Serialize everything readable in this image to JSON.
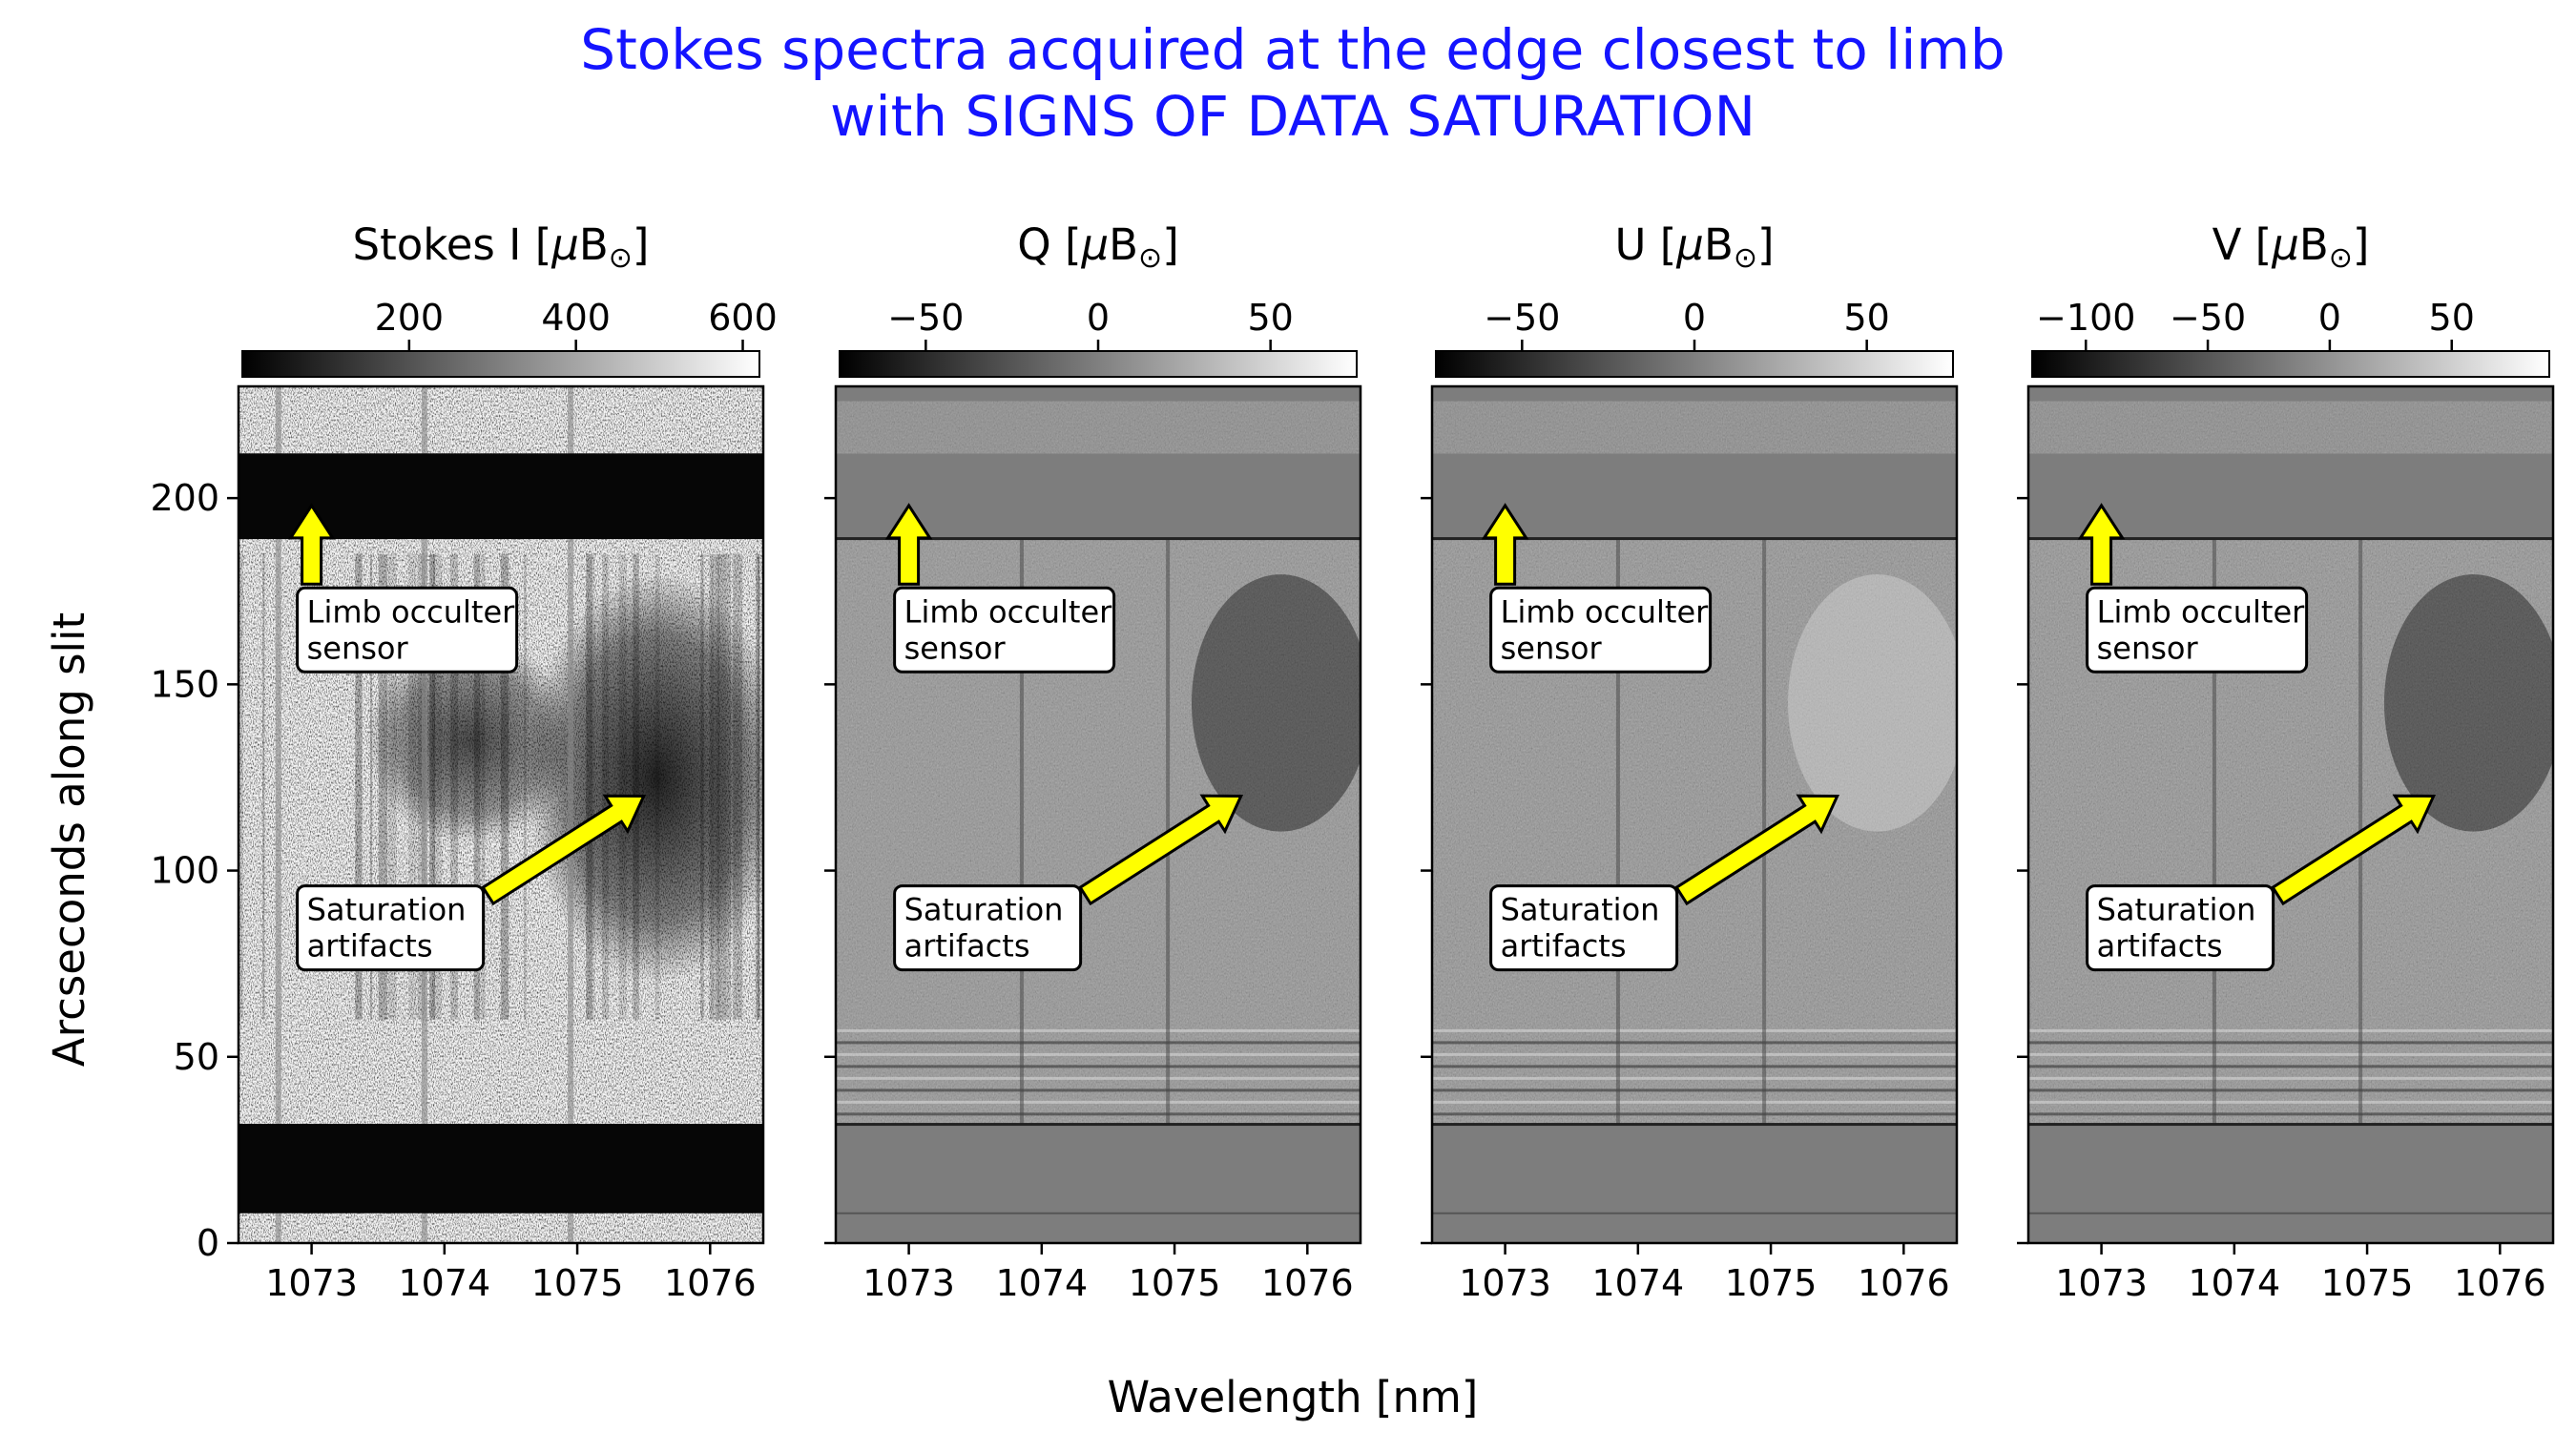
{
  "title_lines": [
    "Stokes spectra acquired at the edge closest to limb",
    "with SIGNS OF DATA SATURATION"
  ],
  "xlabel": "Wavelength [nm]",
  "ylabel": "Arcseconds along slit",
  "colors": {
    "title": "#1414ff",
    "arrow_fill": "#ffff00",
    "arrow_edge": "#000000"
  },
  "chart_data": [
    {
      "type": "heatmap",
      "colorbar": {
        "label_main": "Stokes I [",
        "label_mu": "μ",
        "label_B": "B",
        "label_sun": "⊙",
        "label_close": "]",
        "range": [
          0,
          620
        ],
        "ticks": [
          200,
          400,
          600
        ],
        "tick_labels": [
          "200",
          "400",
          "600"
        ],
        "colormap": "gray"
      },
      "xlim": [
        1072.45,
        1076.4
      ],
      "ylim": [
        0,
        230
      ],
      "xticks": [
        1073,
        1074,
        1075,
        1076
      ],
      "xtick_labels": [
        "1073",
        "1074",
        "1075",
        "1076"
      ],
      "yticks": [
        0,
        50,
        100,
        150,
        200
      ],
      "ytick_labels": [
        "0",
        "50",
        "100",
        "150",
        "200"
      ],
      "dark_bands_y": [
        [
          8,
          32
        ],
        [
          189,
          212
        ]
      ],
      "annotations": [
        {
          "text_lines": [
            "Limb occulter",
            "sensor"
          ],
          "text_xy": [
            1072.95,
            160
          ],
          "arrow_to": [
            1073.0,
            198
          ]
        },
        {
          "text_lines": [
            "Saturation",
            "artifacts"
          ],
          "text_xy": [
            1072.95,
            80
          ],
          "arrow_to": [
            1075.5,
            120
          ]
        }
      ]
    },
    {
      "type": "heatmap",
      "colorbar": {
        "label_main": "Q [",
        "label_mu": "μ",
        "label_B": "B",
        "label_sun": "⊙",
        "label_close": "]",
        "range": [
          -75,
          75
        ],
        "ticks": [
          -50,
          0,
          50
        ],
        "tick_labels": [
          "−50",
          "0",
          "50"
        ],
        "colormap": "gray"
      },
      "xlim": [
        1072.45,
        1076.4
      ],
      "ylim": [
        0,
        230
      ],
      "xticks": [
        1073,
        1074,
        1075,
        1076
      ],
      "xtick_labels": [
        "1073",
        "1074",
        "1075",
        "1076"
      ],
      "yticks": [
        0,
        50,
        100,
        150,
        200
      ],
      "ytick_labels": [],
      "annotations": [
        {
          "text_lines": [
            "Limb occulter",
            "sensor"
          ],
          "text_xy": [
            1072.95,
            160
          ],
          "arrow_to": [
            1073.0,
            198
          ]
        },
        {
          "text_lines": [
            "Saturation",
            "artifacts"
          ],
          "text_xy": [
            1072.95,
            80
          ],
          "arrow_to": [
            1075.5,
            120
          ]
        }
      ]
    },
    {
      "type": "heatmap",
      "colorbar": {
        "label_main": "U [",
        "label_mu": "μ",
        "label_B": "B",
        "label_sun": "⊙",
        "label_close": "]",
        "range": [
          -75,
          75
        ],
        "ticks": [
          -50,
          0,
          50
        ],
        "tick_labels": [
          "−50",
          "0",
          "50"
        ],
        "colormap": "gray"
      },
      "xlim": [
        1072.45,
        1076.4
      ],
      "ylim": [
        0,
        230
      ],
      "xticks": [
        1073,
        1074,
        1075,
        1076
      ],
      "xtick_labels": [
        "1073",
        "1074",
        "1075",
        "1076"
      ],
      "yticks": [
        0,
        50,
        100,
        150,
        200
      ],
      "ytick_labels": [],
      "annotations": [
        {
          "text_lines": [
            "Limb occulter",
            "sensor"
          ],
          "text_xy": [
            1072.95,
            160
          ],
          "arrow_to": [
            1073.0,
            198
          ]
        },
        {
          "text_lines": [
            "Saturation",
            "artifacts"
          ],
          "text_xy": [
            1072.95,
            80
          ],
          "arrow_to": [
            1075.5,
            120
          ]
        }
      ]
    },
    {
      "type": "heatmap",
      "colorbar": {
        "label_main": "V [",
        "label_mu": "μ",
        "label_B": "B",
        "label_sun": "⊙",
        "label_close": "]",
        "range": [
          -122,
          90
        ],
        "ticks": [
          -100,
          -50,
          0,
          50
        ],
        "tick_labels": [
          "−100",
          "−50",
          "0",
          "50"
        ],
        "colormap": "gray"
      },
      "xlim": [
        1072.45,
        1076.4
      ],
      "ylim": [
        0,
        230
      ],
      "xticks": [
        1073,
        1074,
        1075,
        1076
      ],
      "xtick_labels": [
        "1073",
        "1074",
        "1075",
        "1076"
      ],
      "yticks": [
        0,
        50,
        100,
        150,
        200
      ],
      "ytick_labels": [],
      "annotations": [
        {
          "text_lines": [
            "Limb occulter",
            "sensor"
          ],
          "text_xy": [
            1072.95,
            160
          ],
          "arrow_to": [
            1073.0,
            198
          ]
        },
        {
          "text_lines": [
            "Saturation",
            "artifacts"
          ],
          "text_xy": [
            1072.95,
            80
          ],
          "arrow_to": [
            1075.5,
            120
          ]
        }
      ]
    }
  ]
}
